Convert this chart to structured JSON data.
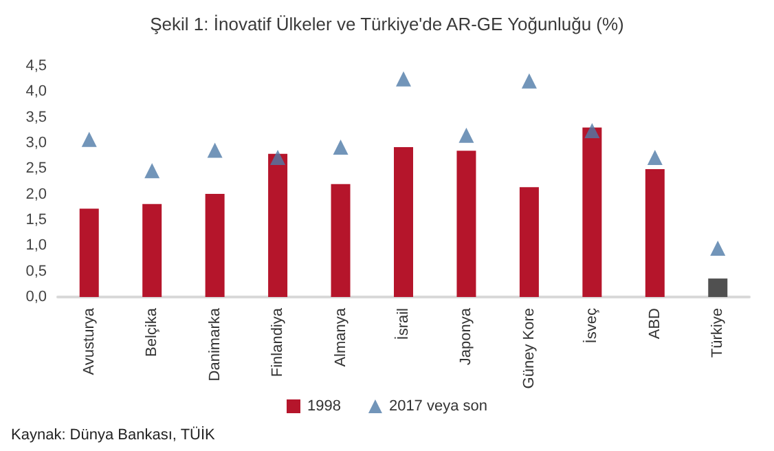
{
  "chart_data": {
    "type": "bar",
    "title": "Şekil 1: İnovatif Ülkeler ve Türkiye'de AR-GE Yoğunluğu (%)",
    "categories": [
      "Avusturya",
      "Belçika",
      "Danimarka",
      "Finlandiya",
      "Almanya",
      "İsrail",
      "Japonya",
      "Güney Kore",
      "İsveç",
      "ABD",
      "Türkiye"
    ],
    "series": [
      {
        "name": "1998",
        "color": "#b5152b",
        "colors": [
          "#b5152b",
          "#b5152b",
          "#b5152b",
          "#b5152b",
          "#b5152b",
          "#b5152b",
          "#b5152b",
          "#b5152b",
          "#b5152b",
          "#b5152b",
          "#505050"
        ],
        "values": [
          1.72,
          1.81,
          2.01,
          2.79,
          2.2,
          2.92,
          2.85,
          2.14,
          3.3,
          2.49,
          0.36
        ]
      },
      {
        "name": "2017 veya son",
        "type": "scatter",
        "color": "#4f7ba8",
        "marker": "triangle",
        "values": [
          3.07,
          2.46,
          2.86,
          2.72,
          2.92,
          4.25,
          3.15,
          4.21,
          3.24,
          2.72,
          0.95
        ]
      }
    ],
    "ylim": [
      0,
      4.5
    ],
    "yticks": [
      {
        "value": 0,
        "label": "0,0"
      },
      {
        "value": 0.5,
        "label": "0,5"
      },
      {
        "value": 1,
        "label": "1,0"
      },
      {
        "value": 1.5,
        "label": "1,5"
      },
      {
        "value": 2,
        "label": "2,0"
      },
      {
        "value": 2.5,
        "label": "2,5"
      },
      {
        "value": 3,
        "label": "3,0"
      },
      {
        "value": 3.5,
        "label": "3,5"
      },
      {
        "value": 4,
        "label": "4,0"
      },
      {
        "value": 4.5,
        "label": "4,5"
      }
    ],
    "grid": false,
    "legend": "bottom",
    "annotations": [
      "Kaynak: Dünya Bankası, TÜİK"
    ]
  }
}
